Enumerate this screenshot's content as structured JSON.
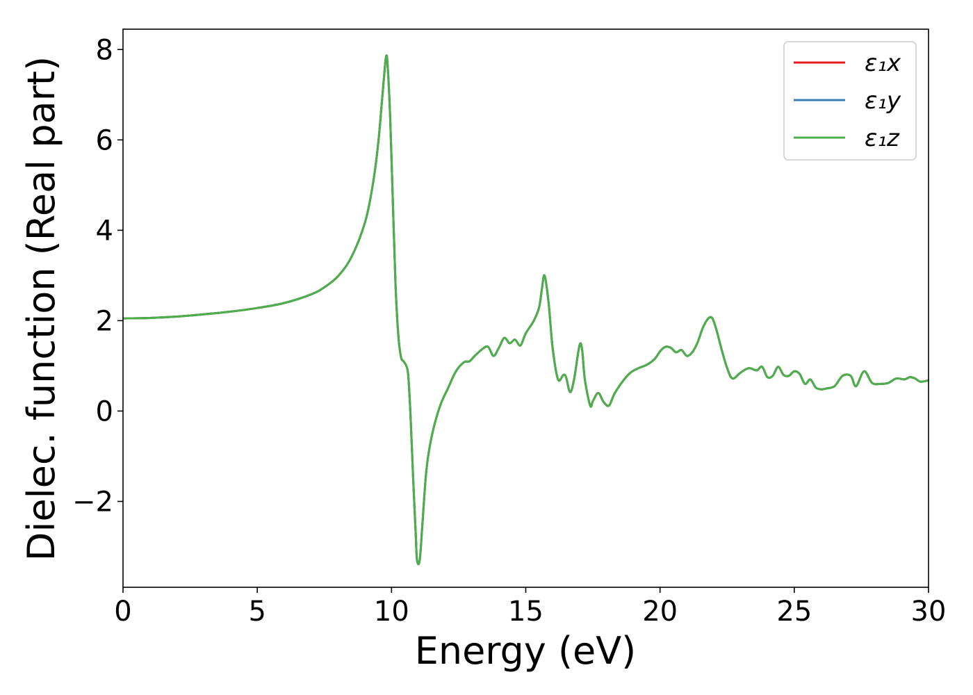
{
  "chart_data": {
    "type": "line",
    "title": "",
    "xlabel": "Energy (eV)",
    "ylabel": "Dielec. function (Real part)",
    "xlim": [
      0,
      30
    ],
    "ylim": [
      -3.9,
      8.45
    ],
    "xticks": [
      0,
      5,
      10,
      15,
      20,
      25,
      30
    ],
    "yticks": [
      -2,
      0,
      2,
      4,
      6,
      8
    ],
    "ytick_labels": [
      "−2",
      "0",
      "2",
      "4",
      "6",
      "8"
    ],
    "grid": false,
    "legend_position": "top-right",
    "x": [
      0,
      1,
      2,
      3,
      4,
      5,
      6,
      7,
      7.5,
      8,
      8.5,
      9,
      9.3,
      9.5,
      9.65,
      9.75,
      9.8,
      9.85,
      9.95,
      10.05,
      10.15,
      10.25,
      10.35,
      10.45,
      10.55,
      10.62,
      10.7,
      10.8,
      10.9,
      10.95,
      11.05,
      11.15,
      11.3,
      11.5,
      11.8,
      12.1,
      12.4,
      12.7,
      12.9,
      13.1,
      13.4,
      13.6,
      13.8,
      14.0,
      14.2,
      14.4,
      14.6,
      14.8,
      15.0,
      15.3,
      15.5,
      15.6,
      15.7,
      15.85,
      16.0,
      16.2,
      16.4,
      16.5,
      16.65,
      16.8,
      17.0,
      17.1,
      17.2,
      17.4,
      17.5,
      17.7,
      17.9,
      18.1,
      18.3,
      18.6,
      18.9,
      19.2,
      19.5,
      19.8,
      20.0,
      20.2,
      20.4,
      20.6,
      20.8,
      21.0,
      21.2,
      21.4,
      21.6,
      21.8,
      21.95,
      22.1,
      22.3,
      22.5,
      22.7,
      23.0,
      23.3,
      23.6,
      23.8,
      24.0,
      24.2,
      24.4,
      24.6,
      24.8,
      25.0,
      25.2,
      25.4,
      25.6,
      25.8,
      26.0,
      26.2,
      26.5,
      26.8,
      27.1,
      27.3,
      27.6,
      27.9,
      28.2,
      28.5,
      28.8,
      29.1,
      29.3,
      29.5,
      29.7,
      30.0
    ],
    "series": [
      {
        "name": "ε₁x",
        "color": "#e41a1c",
        "values": [
          2.05,
          2.06,
          2.09,
          2.14,
          2.2,
          2.28,
          2.39,
          2.58,
          2.74,
          2.98,
          3.4,
          4.15,
          5.0,
          5.9,
          6.9,
          7.6,
          7.85,
          7.7,
          6.5,
          4.6,
          2.8,
          1.7,
          1.2,
          1.1,
          1.0,
          0.8,
          0.0,
          -1.4,
          -2.7,
          -3.3,
          -3.3,
          -2.5,
          -1.3,
          -0.55,
          0.1,
          0.5,
          0.88,
          1.08,
          1.1,
          1.22,
          1.38,
          1.42,
          1.22,
          1.4,
          1.62,
          1.5,
          1.58,
          1.45,
          1.72,
          2.0,
          2.3,
          2.7,
          3.0,
          2.4,
          1.4,
          0.7,
          0.8,
          0.75,
          0.42,
          0.7,
          1.45,
          1.35,
          0.7,
          0.12,
          0.22,
          0.4,
          0.2,
          0.12,
          0.38,
          0.65,
          0.85,
          0.95,
          1.02,
          1.15,
          1.32,
          1.42,
          1.4,
          1.3,
          1.35,
          1.22,
          1.3,
          1.52,
          1.85,
          2.05,
          2.05,
          1.8,
          1.35,
          0.95,
          0.72,
          0.85,
          0.95,
          0.9,
          0.98,
          0.75,
          0.78,
          0.98,
          0.8,
          0.78,
          0.88,
          0.82,
          0.6,
          0.7,
          0.52,
          0.48,
          0.5,
          0.55,
          0.78,
          0.78,
          0.55,
          0.88,
          0.62,
          0.6,
          0.62,
          0.72,
          0.7,
          0.75,
          0.72,
          0.65,
          0.68
        ]
      },
      {
        "name": "ε₁y",
        "color": "#377eb8",
        "values": [
          2.05,
          2.06,
          2.09,
          2.14,
          2.2,
          2.28,
          2.39,
          2.58,
          2.74,
          2.98,
          3.4,
          4.15,
          5.0,
          5.9,
          6.9,
          7.6,
          7.85,
          7.7,
          6.5,
          4.6,
          2.8,
          1.7,
          1.2,
          1.1,
          1.0,
          0.8,
          0.0,
          -1.4,
          -2.7,
          -3.3,
          -3.3,
          -2.5,
          -1.3,
          -0.55,
          0.1,
          0.5,
          0.88,
          1.08,
          1.1,
          1.22,
          1.38,
          1.42,
          1.22,
          1.4,
          1.62,
          1.5,
          1.58,
          1.45,
          1.72,
          2.0,
          2.3,
          2.7,
          3.0,
          2.4,
          1.4,
          0.7,
          0.8,
          0.75,
          0.42,
          0.7,
          1.45,
          1.35,
          0.7,
          0.12,
          0.22,
          0.4,
          0.2,
          0.12,
          0.38,
          0.65,
          0.85,
          0.95,
          1.02,
          1.15,
          1.32,
          1.42,
          1.4,
          1.3,
          1.35,
          1.22,
          1.3,
          1.52,
          1.85,
          2.05,
          2.05,
          1.8,
          1.35,
          0.95,
          0.72,
          0.85,
          0.95,
          0.9,
          0.98,
          0.75,
          0.78,
          0.98,
          0.8,
          0.78,
          0.88,
          0.82,
          0.6,
          0.7,
          0.52,
          0.48,
          0.5,
          0.55,
          0.78,
          0.78,
          0.55,
          0.88,
          0.62,
          0.6,
          0.62,
          0.72,
          0.7,
          0.75,
          0.72,
          0.65,
          0.68
        ]
      },
      {
        "name": "ε₁z",
        "color": "#4daf4a",
        "values": [
          2.05,
          2.06,
          2.09,
          2.14,
          2.2,
          2.28,
          2.39,
          2.58,
          2.74,
          2.98,
          3.4,
          4.15,
          5.0,
          5.9,
          6.9,
          7.6,
          7.85,
          7.7,
          6.5,
          4.6,
          2.8,
          1.7,
          1.2,
          1.1,
          1.0,
          0.8,
          0.0,
          -1.4,
          -2.7,
          -3.3,
          -3.3,
          -2.5,
          -1.3,
          -0.55,
          0.1,
          0.5,
          0.88,
          1.08,
          1.1,
          1.22,
          1.38,
          1.42,
          1.22,
          1.4,
          1.62,
          1.5,
          1.58,
          1.45,
          1.72,
          2.0,
          2.3,
          2.7,
          3.0,
          2.4,
          1.4,
          0.7,
          0.8,
          0.75,
          0.42,
          0.7,
          1.45,
          1.35,
          0.7,
          0.12,
          0.22,
          0.4,
          0.2,
          0.12,
          0.38,
          0.65,
          0.85,
          0.95,
          1.02,
          1.15,
          1.32,
          1.42,
          1.4,
          1.3,
          1.35,
          1.22,
          1.3,
          1.52,
          1.85,
          2.05,
          2.05,
          1.8,
          1.35,
          0.95,
          0.72,
          0.85,
          0.95,
          0.9,
          0.98,
          0.75,
          0.78,
          0.98,
          0.8,
          0.78,
          0.88,
          0.82,
          0.6,
          0.7,
          0.52,
          0.48,
          0.5,
          0.55,
          0.78,
          0.78,
          0.55,
          0.88,
          0.62,
          0.6,
          0.62,
          0.72,
          0.7,
          0.75,
          0.72,
          0.65,
          0.68
        ]
      }
    ]
  }
}
